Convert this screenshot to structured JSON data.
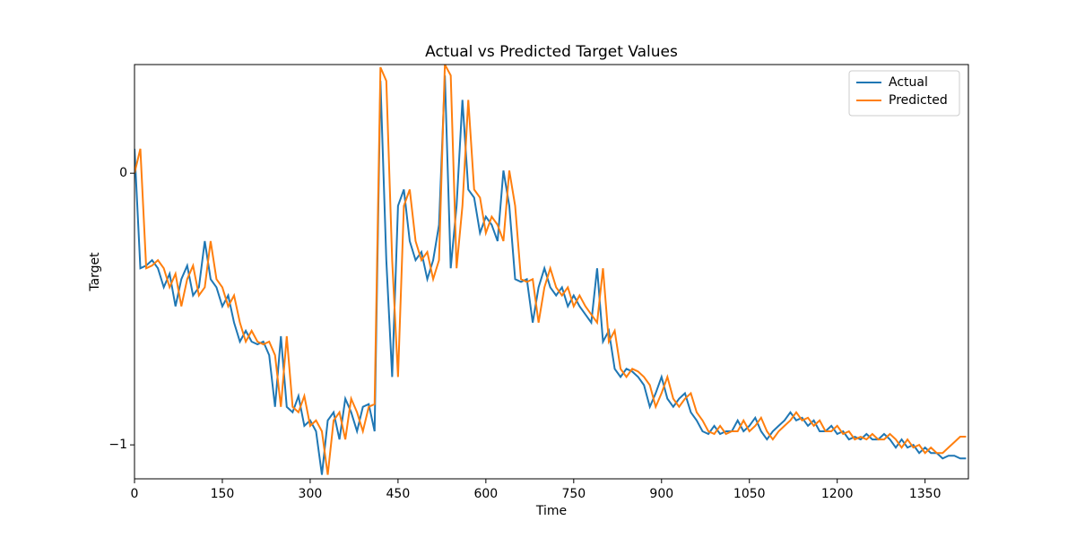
{
  "chart_data": {
    "type": "line",
    "title": "Actual vs Predicted Target Values",
    "x_label": "Time",
    "y_label": "Target",
    "x": [
      0,
      10,
      20,
      30,
      40,
      50,
      60,
      70,
      80,
      90,
      100,
      110,
      120,
      130,
      140,
      150,
      160,
      170,
      180,
      190,
      200,
      210,
      220,
      230,
      240,
      250,
      260,
      270,
      280,
      290,
      300,
      310,
      320,
      330,
      340,
      350,
      360,
      370,
      380,
      390,
      400,
      410,
      420,
      430,
      440,
      450,
      460,
      470,
      480,
      490,
      500,
      510,
      520,
      530,
      540,
      550,
      560,
      570,
      580,
      590,
      600,
      610,
      620,
      630,
      640,
      650,
      660,
      670,
      680,
      690,
      700,
      710,
      720,
      730,
      740,
      750,
      760,
      770,
      780,
      790,
      800,
      810,
      820,
      830,
      840,
      850,
      860,
      870,
      880,
      890,
      900,
      910,
      920,
      930,
      940,
      950,
      960,
      970,
      980,
      990,
      1000,
      1010,
      1020,
      1030,
      1040,
      1050,
      1060,
      1070,
      1080,
      1090,
      1100,
      1110,
      1120,
      1130,
      1140,
      1150,
      1160,
      1170,
      1180,
      1190,
      1200,
      1210,
      1220,
      1230,
      1240,
      1250,
      1260,
      1270,
      1280,
      1290,
      1300,
      1310,
      1320,
      1330,
      1340,
      1350,
      1360,
      1370,
      1380,
      1390,
      1400,
      1410,
      1420
    ],
    "series": [
      {
        "name": "Actual",
        "color": "#1f77b4",
        "values": [
          0.09,
          -0.35,
          -0.34,
          -0.32,
          -0.35,
          -0.42,
          -0.37,
          -0.49,
          -0.39,
          -0.34,
          -0.45,
          -0.42,
          -0.25,
          -0.39,
          -0.42,
          -0.49,
          -0.45,
          -0.55,
          -0.62,
          -0.58,
          -0.62,
          -0.63,
          -0.62,
          -0.67,
          -0.86,
          -0.6,
          -0.86,
          -0.88,
          -0.82,
          -0.93,
          -0.91,
          -0.95,
          -1.11,
          -0.91,
          -0.88,
          -0.98,
          -0.83,
          -0.88,
          -0.95,
          -0.86,
          -0.85,
          -0.95,
          0.34,
          -0.32,
          -0.75,
          -0.12,
          -0.06,
          -0.25,
          -0.32,
          -0.29,
          -0.39,
          -0.32,
          -0.19,
          0.36,
          -0.35,
          -0.12,
          0.27,
          -0.06,
          -0.09,
          -0.22,
          -0.16,
          -0.19,
          -0.25,
          0.01,
          -0.12,
          -0.39,
          -0.4,
          -0.39,
          -0.55,
          -0.42,
          -0.35,
          -0.42,
          -0.45,
          -0.42,
          -0.49,
          -0.45,
          -0.49,
          -0.52,
          -0.55,
          -0.35,
          -0.62,
          -0.58,
          -0.72,
          -0.75,
          -0.72,
          -0.73,
          -0.75,
          -0.78,
          -0.86,
          -0.81,
          -0.75,
          -0.83,
          -0.86,
          -0.83,
          -0.81,
          -0.88,
          -0.91,
          -0.95,
          -0.96,
          -0.93,
          -0.96,
          -0.95,
          -0.95,
          -0.91,
          -0.95,
          -0.93,
          -0.9,
          -0.95,
          -0.98,
          -0.95,
          -0.93,
          -0.91,
          -0.88,
          -0.91,
          -0.9,
          -0.93,
          -0.91,
          -0.95,
          -0.95,
          -0.93,
          -0.96,
          -0.95,
          -0.98,
          -0.97,
          -0.98,
          -0.96,
          -0.98,
          -0.98,
          -0.96,
          -0.98,
          -1.01,
          -0.98,
          -1.01,
          -1.0,
          -1.03,
          -1.01,
          -1.03,
          -1.03,
          -1.05,
          -1.04,
          -1.04,
          -1.05,
          -1.05
        ]
      },
      {
        "name": "Predicted",
        "color": "#ff7f0e",
        "values": [
          0.0,
          0.09,
          -0.35,
          -0.34,
          -0.32,
          -0.35,
          -0.42,
          -0.37,
          -0.49,
          -0.39,
          -0.34,
          -0.45,
          -0.42,
          -0.25,
          -0.39,
          -0.42,
          -0.49,
          -0.45,
          -0.55,
          -0.62,
          -0.58,
          -0.62,
          -0.63,
          -0.62,
          -0.67,
          -0.86,
          -0.6,
          -0.86,
          -0.88,
          -0.82,
          -0.93,
          -0.91,
          -0.95,
          -1.11,
          -0.91,
          -0.88,
          -0.98,
          -0.83,
          -0.88,
          -0.95,
          -0.86,
          -0.85,
          0.39,
          0.34,
          -0.32,
          -0.75,
          -0.12,
          -0.06,
          -0.25,
          -0.32,
          -0.29,
          -0.39,
          -0.32,
          0.4,
          0.36,
          -0.35,
          -0.12,
          0.27,
          -0.06,
          -0.09,
          -0.22,
          -0.16,
          -0.19,
          -0.25,
          0.01,
          -0.12,
          -0.39,
          -0.4,
          -0.39,
          -0.55,
          -0.42,
          -0.35,
          -0.42,
          -0.45,
          -0.42,
          -0.49,
          -0.45,
          -0.49,
          -0.52,
          -0.55,
          -0.35,
          -0.62,
          -0.58,
          -0.72,
          -0.75,
          -0.72,
          -0.73,
          -0.75,
          -0.78,
          -0.86,
          -0.81,
          -0.75,
          -0.83,
          -0.86,
          -0.83,
          -0.81,
          -0.88,
          -0.91,
          -0.95,
          -0.96,
          -0.93,
          -0.96,
          -0.95,
          -0.95,
          -0.91,
          -0.95,
          -0.93,
          -0.9,
          -0.95,
          -0.98,
          -0.95,
          -0.93,
          -0.91,
          -0.88,
          -0.91,
          -0.9,
          -0.93,
          -0.91,
          -0.95,
          -0.95,
          -0.93,
          -0.96,
          -0.95,
          -0.98,
          -0.97,
          -0.98,
          -0.96,
          -0.98,
          -0.98,
          -0.96,
          -0.98,
          -1.01,
          -0.98,
          -1.01,
          -1.0,
          -1.03,
          -1.01,
          -1.03,
          -1.03,
          -1.01,
          -0.99,
          -0.97,
          -0.97
        ]
      }
    ],
    "xlim": [
      0,
      1424
    ],
    "ylim": [
      -1.125,
      0.4
    ],
    "xticks": [
      0,
      150,
      300,
      450,
      600,
      750,
      900,
      1050,
      1200,
      1350
    ],
    "yticks": [
      {
        "value": -1,
        "label": "−1"
      },
      0
    ],
    "legend": "upper right"
  }
}
